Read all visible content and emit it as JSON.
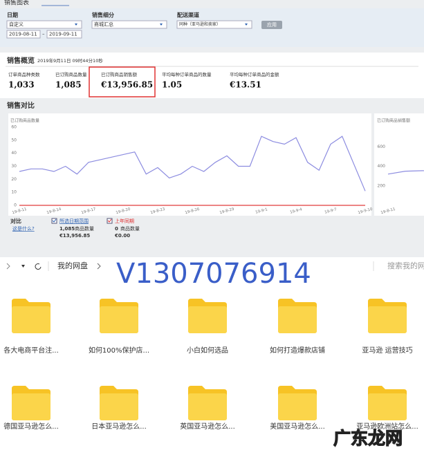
{
  "dashboard": {
    "tab_title": "销售图表",
    "filters": {
      "date": {
        "label": "日期",
        "select": "自定义",
        "from": "2019-08-11",
        "separator": "–",
        "to": "2019-09-11"
      },
      "breakdown": {
        "label": "销售细分",
        "select": "商城汇总"
      },
      "channel": {
        "label": "配送渠道",
        "select": "同种（亚马逊和卖家）"
      },
      "apply": "应用"
    },
    "overview": {
      "title": "销售概览",
      "timestamp": "2019年9月11日 09时44分10秒",
      "metrics": [
        {
          "label": "订单商品种类数",
          "value": "1,033"
        },
        {
          "label": "已订购商品数量",
          "value": "1,085"
        },
        {
          "label": "已订购商品销售额",
          "value": "€13,956.85"
        },
        {
          "label": "平均每种订单商品的数量",
          "value": "1.05"
        },
        {
          "label": "平均每种订单商品的金额",
          "value": "€13.51"
        }
      ]
    },
    "comparison": {
      "title": "销售对比",
      "legend_label": "对比",
      "help": "这是什么?",
      "current": {
        "count": "1,085",
        "count_unit": "商品数量",
        "sales": "€13,956.85"
      },
      "previous": {
        "count": "0",
        "count_unit": "商品数量",
        "sales": "€0.00"
      }
    }
  },
  "chart_data": [
    {
      "type": "line",
      "y_label": "已订购商品数量",
      "categories": [
        "19-8-11",
        null,
        null,
        "19-8-14",
        null,
        null,
        "19-8-17",
        null,
        null,
        "19-8-20",
        null,
        null,
        "19-8-23",
        null,
        null,
        "19-8-26",
        null,
        null,
        "19-8-29",
        null,
        null,
        "19-9-1",
        null,
        null,
        "19-9-4",
        null,
        null,
        "19-9-7",
        null,
        null,
        "19-9-10"
      ],
      "series": [
        {
          "name": "所选日期范围",
          "color": "#8c8ce0",
          "values": [
            26,
            28,
            28,
            26,
            30,
            24,
            33,
            35,
            37,
            39,
            41,
            24,
            29,
            21,
            24,
            30,
            26,
            33,
            38,
            30,
            30,
            53,
            49,
            47,
            52,
            33,
            27,
            47,
            53,
            32,
            11
          ]
        },
        {
          "name": "上年同期",
          "color": "#e03a3a",
          "values": [
            0,
            0,
            0,
            0,
            0,
            0,
            0,
            0,
            0,
            0,
            0,
            0,
            0,
            0,
            0,
            0,
            0,
            0,
            0,
            0,
            0,
            0,
            0,
            0,
            0,
            0,
            0,
            0,
            0,
            0,
            0
          ]
        }
      ],
      "ylim": [
        0,
        60
      ],
      "yticks": [
        0,
        10,
        20,
        30,
        40,
        50,
        60
      ]
    },
    {
      "type": "line",
      "y_label": "已订购商品销售额",
      "categories": [
        "19-8-11",
        null,
        null,
        "19-8-14",
        null
      ],
      "series": [
        {
          "color": "#8c8ce0",
          "values": [
            320,
            350,
            355,
            350,
            320
          ]
        }
      ],
      "ylim": [
        0,
        800
      ],
      "yticks": [
        200,
        400,
        600
      ]
    }
  ],
  "drive": {
    "toolbar": {
      "path": "我的网盘",
      "search": "搜索我的网"
    },
    "watermark": "V1307076914",
    "folders": [
      "各大电商平台注...",
      "如何100%保护店...",
      "小白如何选品",
      "如何打造爆款店铺",
      "亚马逊 运营技巧",
      "德国亚马逊怎么...",
      "日本亚马逊怎么...",
      "英国亚马逊怎么...",
      "美国亚马逊怎么...",
      "亚马逊欧洲站怎么..."
    ],
    "corner_watermark": "广东龙网"
  }
}
